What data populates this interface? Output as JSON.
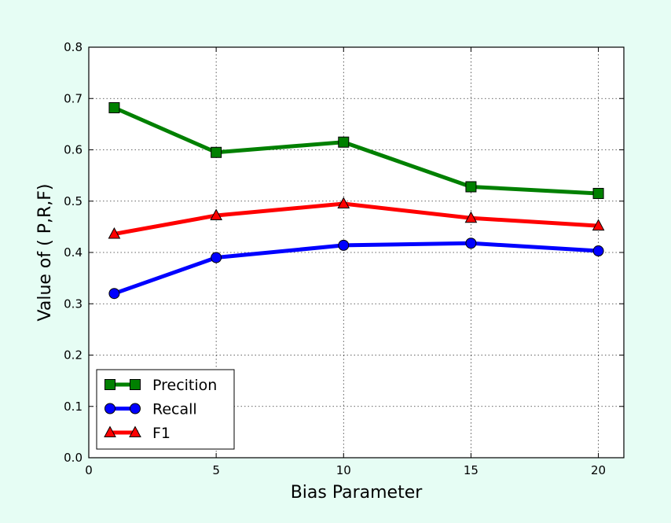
{
  "chart_data": {
    "type": "line",
    "xlabel": "Bias Parameter",
    "ylabel": "Value of ( P,R,F)",
    "xlim": [
      0,
      21
    ],
    "ylim": [
      0,
      0.8
    ],
    "xticks": [
      0,
      5,
      10,
      15,
      20
    ],
    "xtick_labels": [
      "0",
      "5",
      "10",
      "15",
      "20"
    ],
    "yticks": [
      0,
      0.1,
      0.2,
      0.3,
      0.4,
      0.5,
      0.6,
      0.7,
      0.8
    ],
    "ytick_labels": [
      "0.0",
      "0.1",
      "0.2",
      "0.3",
      "0.4",
      "0.5",
      "0.6",
      "0.7",
      "0.8"
    ],
    "grid": true,
    "legend_position": "lower-left",
    "x": [
      1,
      5,
      10,
      15,
      20
    ],
    "series": [
      {
        "name": "Precition",
        "values": [
          0.682,
          0.595,
          0.615,
          0.528,
          0.515
        ],
        "color": "#008000",
        "marker": "square"
      },
      {
        "name": "Recall",
        "values": [
          0.32,
          0.39,
          0.414,
          0.418,
          0.403
        ],
        "color": "#0000ff",
        "marker": "circle"
      },
      {
        "name": "F1",
        "values": [
          0.436,
          0.472,
          0.495,
          0.467,
          0.452
        ],
        "color": "#ff0000",
        "marker": "triangle"
      }
    ]
  }
}
